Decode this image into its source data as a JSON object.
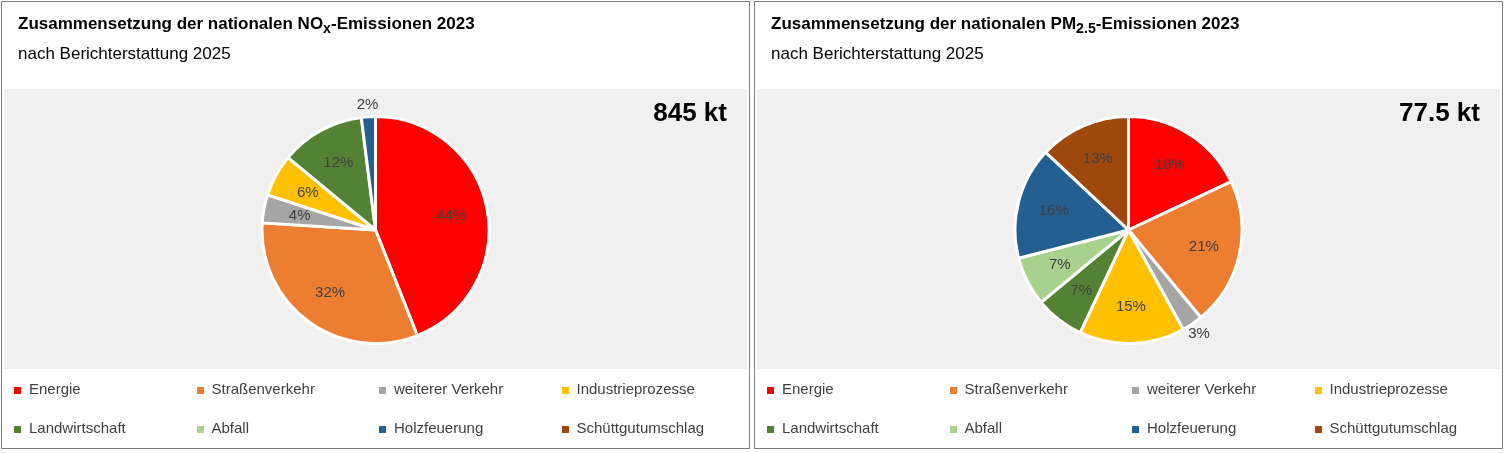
{
  "chart_data": [
    {
      "type": "pie",
      "title": "Zusammensetzung der nationalen NO$_{x}$-Emissionen 2023",
      "subtitle": "nach Berichterstattung 2025",
      "categories": [
        "Energie",
        "Straßenverkehr",
        "weiterer Verkehr",
        "Industrieprozesse",
        "Landwirtschaft",
        "Abfall",
        "Holzfeuerung",
        "Schüttgutumschlag"
      ],
      "values": [
        44,
        32,
        4,
        6,
        12,
        0,
        2,
        0
      ],
      "value_labels": [
        "44%",
        "32%",
        "4%",
        "6%",
        "12%",
        null,
        "2%",
        null
      ],
      "colors": [
        "#ff0000",
        "#ed7d31",
        "#a5a5a5",
        "#ffc000",
        "#548235",
        "#a9d18e",
        "#255e91",
        "#9e480e"
      ],
      "annotations": [
        "845 kt"
      ],
      "legend": "bottom"
    },
    {
      "type": "pie",
      "title": "Zusammensetzung der nationalen PM$_{2.5}$-Emissionen 2023",
      "subtitle": "nach Berichterstattung 2025",
      "categories": [
        "Energie",
        "Straßenverkehr",
        "weiterer Verkehr",
        "Industrieprozesse",
        "Landwirtschaft",
        "Abfall",
        "Holzfeuerung",
        "Schüttgutumschlag"
      ],
      "values": [
        18,
        21,
        3,
        15,
        7,
        7,
        16,
        13
      ],
      "value_labels": [
        "18%",
        "21%",
        "3%",
        "15%",
        "7%",
        "7%",
        "16%",
        "13%"
      ],
      "colors": [
        "#ff0000",
        "#ed7d31",
        "#a5a5a5",
        "#ffc000",
        "#548235",
        "#a9d18e",
        "#255e91",
        "#9e480e"
      ],
      "annotations": [
        "77.5 kt"
      ],
      "legend": "bottom"
    }
  ]
}
